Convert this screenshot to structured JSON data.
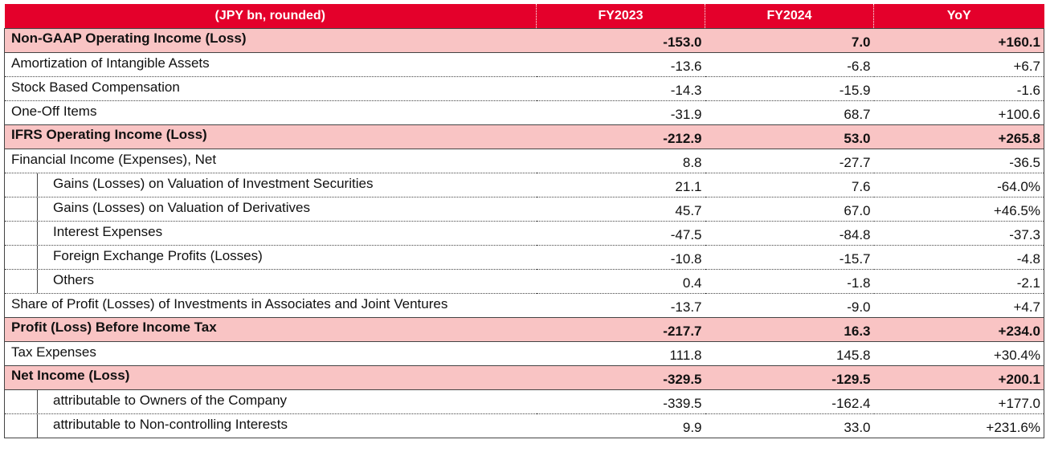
{
  "table": {
    "headers": [
      "(JPY bn, rounded)",
      "FY2023",
      "FY2024",
      "YoY"
    ],
    "rows": [
      {
        "label": "Non-GAAP Operating Income (Loss)",
        "fy2023": "-153.0",
        "fy2024": "7.0",
        "yoy": "+160.1"
      },
      {
        "label": "Amortization of Intangible Assets",
        "fy2023": "-13.6",
        "fy2024": "-6.8",
        "yoy": "+6.7"
      },
      {
        "label": "Stock Based Compensation",
        "fy2023": "-14.3",
        "fy2024": "-15.9",
        "yoy": "-1.6"
      },
      {
        "label": "One-Off Items",
        "fy2023": "-31.9",
        "fy2024": "68.7",
        "yoy": "+100.6"
      },
      {
        "label": "IFRS Operating Income (Loss)",
        "fy2023": "-212.9",
        "fy2024": "53.0",
        "yoy": "+265.8"
      },
      {
        "label": "Financial Income (Expenses), Net",
        "fy2023": "8.8",
        "fy2024": "-27.7",
        "yoy": "-36.5"
      },
      {
        "label": "Gains (Losses) on Valuation of Investment Securities",
        "fy2023": "21.1",
        "fy2024": "7.6",
        "yoy": "-64.0%"
      },
      {
        "label": "Gains (Losses) on Valuation of Derivatives",
        "fy2023": "45.7",
        "fy2024": "67.0",
        "yoy": "+46.5%"
      },
      {
        "label": "Interest Expenses",
        "fy2023": "-47.5",
        "fy2024": "-84.8",
        "yoy": "-37.3"
      },
      {
        "label": "Foreign Exchange Profits (Losses)",
        "fy2023": "-10.8",
        "fy2024": "-15.7",
        "yoy": "-4.8"
      },
      {
        "label": "Others",
        "fy2023": "0.4",
        "fy2024": "-1.8",
        "yoy": "-2.1"
      },
      {
        "label": "Share of Profit (Losses) of Investments in Associates and Joint Ventures",
        "fy2023": "-13.7",
        "fy2024": "-9.0",
        "yoy": "+4.7"
      },
      {
        "label": "Profit (Loss) Before Income Tax",
        "fy2023": "-217.7",
        "fy2024": "16.3",
        "yoy": "+234.0"
      },
      {
        "label": "Tax Expenses",
        "fy2023": "111.8",
        "fy2024": "145.8",
        "yoy": "+30.4%"
      },
      {
        "label": "Net Income (Loss)",
        "fy2023": "-329.5",
        "fy2024": "-129.5",
        "yoy": "+200.1"
      },
      {
        "label": "attributable to Owners of the Company",
        "fy2023": "-339.5",
        "fy2024": "-162.4",
        "yoy": "+177.0"
      },
      {
        "label": "attributable to Non-controlling Interests",
        "fy2023": "9.9",
        "fy2024": "33.0",
        "yoy": "+231.6%"
      }
    ]
  },
  "colors": {
    "header_bg": "#e4002b",
    "highlight_bg": "#f9c4c4"
  }
}
